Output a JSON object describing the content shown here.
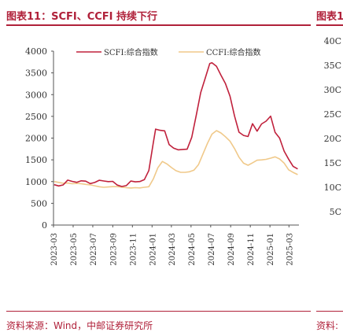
{
  "figure": {
    "title": "图表11：SCFI、CCFI 持续下行",
    "right_title": "图表1",
    "source": "资料来源：Wind，中邮证券研究所",
    "right_source": "资料:"
  },
  "colors": {
    "accent": "#b0213a",
    "scfi": "#c0213c",
    "ccfi": "#f0c98a"
  },
  "chart_data": {
    "type": "line",
    "title": "",
    "xlabel": "",
    "ylabel": "",
    "ylim": [
      0,
      4000
    ],
    "yticks": [
      0,
      500,
      1000,
      1500,
      2000,
      2500,
      3000,
      3500,
      4000
    ],
    "xlim": [
      "2023-03",
      "2025-04"
    ],
    "xticks": [
      "2023-03",
      "2023-05",
      "2023-07",
      "2023-09",
      "2023-11",
      "2024-01",
      "2024-03",
      "2024-05",
      "2024-07",
      "2024-09",
      "2024-11",
      "2025-01",
      "2025-03"
    ],
    "legend": "top",
    "grid": false,
    "series": [
      {
        "name": "SCFI:综合指数",
        "color": "#c0213c",
        "points": [
          [
            "2023-03-03",
            929
          ],
          [
            "2023-03-17",
            900
          ],
          [
            "2023-03-31",
            923
          ],
          [
            "2023-04-14",
            1033
          ],
          [
            "2023-04-28",
            1005
          ],
          [
            "2023-05-12",
            983
          ],
          [
            "2023-05-26",
            1017
          ],
          [
            "2023-06-09",
            1010
          ],
          [
            "2023-06-23",
            953
          ],
          [
            "2023-07-07",
            979
          ],
          [
            "2023-07-21",
            1030
          ],
          [
            "2023-08-04",
            1013
          ],
          [
            "2023-08-18",
            1000
          ],
          [
            "2023-09-01",
            1004
          ],
          [
            "2023-09-15",
            920
          ],
          [
            "2023-09-29",
            886
          ],
          [
            "2023-10-13",
            906
          ],
          [
            "2023-10-27",
            1012
          ],
          [
            "2023-11-10",
            994
          ],
          [
            "2023-11-24",
            1001
          ],
          [
            "2023-12-08",
            1045
          ],
          [
            "2023-12-22",
            1254
          ],
          [
            "2024-01-05",
            1896
          ],
          [
            "2024-01-12",
            2206
          ],
          [
            "2024-01-26",
            2180
          ],
          [
            "2024-02-09",
            2166
          ],
          [
            "2024-02-23",
            1851
          ],
          [
            "2024-03-08",
            1770
          ],
          [
            "2024-03-22",
            1730
          ],
          [
            "2024-04-05",
            1740
          ],
          [
            "2024-04-19",
            1745
          ],
          [
            "2024-05-03",
            2017
          ],
          [
            "2024-05-17",
            2520
          ],
          [
            "2024-05-31",
            3044
          ],
          [
            "2024-06-14",
            3379
          ],
          [
            "2024-06-28",
            3714
          ],
          [
            "2024-07-05",
            3734
          ],
          [
            "2024-07-19",
            3651
          ],
          [
            "2024-08-02",
            3447
          ],
          [
            "2024-08-16",
            3253
          ],
          [
            "2024-08-30",
            2963
          ],
          [
            "2024-09-13",
            2510
          ],
          [
            "2024-09-27",
            2135
          ],
          [
            "2024-10-11",
            2062
          ],
          [
            "2024-10-25",
            2037
          ],
          [
            "2024-11-08",
            2331
          ],
          [
            "2024-11-22",
            2160
          ],
          [
            "2024-12-06",
            2326
          ],
          [
            "2024-12-20",
            2390
          ],
          [
            "2025-01-03",
            2505
          ],
          [
            "2025-01-17",
            2130
          ],
          [
            "2025-01-31",
            2000
          ],
          [
            "2025-02-14",
            1700
          ],
          [
            "2025-02-28",
            1515
          ],
          [
            "2025-03-14",
            1350
          ],
          [
            "2025-03-28",
            1290
          ]
        ]
      },
      {
        "name": "CCFI:综合指数",
        "color": "#f0c98a",
        "points": [
          [
            "2023-03-03",
            1001
          ],
          [
            "2023-03-17",
            981
          ],
          [
            "2023-03-31",
            961
          ],
          [
            "2023-04-14",
            966
          ],
          [
            "2023-04-28",
            950
          ],
          [
            "2023-05-12",
            957
          ],
          [
            "2023-05-26",
            950
          ],
          [
            "2023-06-09",
            935
          ],
          [
            "2023-06-23",
            925
          ],
          [
            "2023-07-07",
            904
          ],
          [
            "2023-07-21",
            882
          ],
          [
            "2023-08-04",
            869
          ],
          [
            "2023-08-18",
            876
          ],
          [
            "2023-09-01",
            883
          ],
          [
            "2023-09-15",
            884
          ],
          [
            "2023-09-29",
            873
          ],
          [
            "2023-10-13",
            860
          ],
          [
            "2023-10-27",
            852
          ],
          [
            "2023-11-10",
            860
          ],
          [
            "2023-11-24",
            855
          ],
          [
            "2023-12-08",
            868
          ],
          [
            "2023-12-22",
            882
          ],
          [
            "2024-01-05",
            1060
          ],
          [
            "2024-01-19",
            1320
          ],
          [
            "2024-02-02",
            1463
          ],
          [
            "2024-02-16",
            1407
          ],
          [
            "2024-03-01",
            1323
          ],
          [
            "2024-03-15",
            1250
          ],
          [
            "2024-03-29",
            1215
          ],
          [
            "2024-04-12",
            1213
          ],
          [
            "2024-04-26",
            1226
          ],
          [
            "2024-05-10",
            1263
          ],
          [
            "2024-05-24",
            1390
          ],
          [
            "2024-06-07",
            1635
          ],
          [
            "2024-06-21",
            1878
          ],
          [
            "2024-07-05",
            2091
          ],
          [
            "2024-07-19",
            2172
          ],
          [
            "2024-08-02",
            2118
          ],
          [
            "2024-08-16",
            2031
          ],
          [
            "2024-08-30",
            1930
          ],
          [
            "2024-09-13",
            1760
          ],
          [
            "2024-09-27",
            1561
          ],
          [
            "2024-10-11",
            1422
          ],
          [
            "2024-10-25",
            1375
          ],
          [
            "2024-11-08",
            1432
          ],
          [
            "2024-11-22",
            1492
          ],
          [
            "2024-12-06",
            1498
          ],
          [
            "2024-12-20",
            1512
          ],
          [
            "2025-01-03",
            1538
          ],
          [
            "2025-01-17",
            1570
          ],
          [
            "2025-01-31",
            1520
          ],
          [
            "2025-02-14",
            1424
          ],
          [
            "2025-02-28",
            1270
          ],
          [
            "2025-03-14",
            1210
          ],
          [
            "2025-03-28",
            1160
          ]
        ]
      }
    ]
  },
  "right_panel": {
    "ticks": [
      "40C",
      "35C",
      "30C",
      "25C",
      "20C",
      "15C",
      "10C",
      "5C"
    ]
  }
}
